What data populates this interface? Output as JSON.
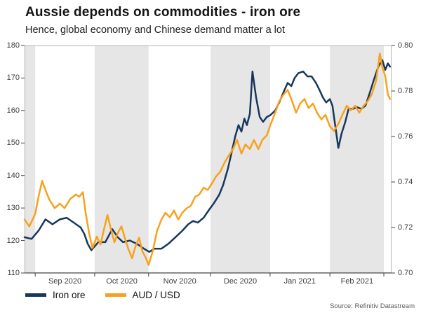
{
  "source": "Source: Refinitiv Datastream",
  "colors": {
    "navy": "#17375e",
    "orange": "#f8a11c",
    "band": "#e6e6e6",
    "frame": "#a0a0a0",
    "axis": "#3d3d3d",
    "tick": "#404040"
  },
  "legend": [
    {
      "label": "Iron ore",
      "color": "#17375e"
    },
    {
      "label": "AUD / USD",
      "color": "#f8a11c"
    }
  ],
  "chart_data": {
    "type": "line",
    "title": "Aussie depends on commodities - iron ore",
    "subtitle": "Hence, global economy and Chinese demand matter a lot",
    "legend_position": "bottom-left",
    "grid": "off",
    "left_axis": {
      "range": [
        110,
        180
      ],
      "ticks": [
        180,
        170,
        160,
        150,
        140,
        130,
        120,
        110
      ]
    },
    "right_axis": {
      "range": [
        0.7,
        0.8
      ],
      "ticks": [
        "0.80",
        "0.78",
        "0.76",
        "0.74",
        "0.72",
        "0.70"
      ]
    },
    "x_labels": [
      {
        "label": "Sep 2020",
        "pos": 0.11
      },
      {
        "label": "Oct 2020",
        "pos": 0.265
      },
      {
        "label": "Nov 2020",
        "pos": 0.423
      },
      {
        "label": "Dec 2020",
        "pos": 0.588
      },
      {
        "label": "Jan 2021",
        "pos": 0.75
      },
      {
        "label": "Feb 2021",
        "pos": 0.906
      }
    ],
    "x_ticks": [
      0.029,
      0.191,
      0.338,
      0.507,
      0.669,
      0.832,
      0.979
    ],
    "bands": [
      {
        "start": 0.0,
        "end": 0.029,
        "shaded": true
      },
      {
        "start": 0.029,
        "end": 0.191,
        "shaded": false
      },
      {
        "start": 0.191,
        "end": 0.338,
        "shaded": true
      },
      {
        "start": 0.338,
        "end": 0.507,
        "shaded": false
      },
      {
        "start": 0.507,
        "end": 0.669,
        "shaded": true
      },
      {
        "start": 0.669,
        "end": 0.832,
        "shaded": false
      },
      {
        "start": 0.832,
        "end": 0.979,
        "shaded": true
      },
      {
        "start": 0.979,
        "end": 1.0,
        "shaded": false
      }
    ],
    "series": [
      {
        "name": "Iron ore",
        "axis": "left",
        "color": "#17375e",
        "x": [
          0,
          0.019,
          0.038,
          0.057,
          0.076,
          0.096,
          0.115,
          0.134,
          0.153,
          0.163,
          0.172,
          0.182,
          0.201,
          0.22,
          0.239,
          0.254,
          0.268,
          0.287,
          0.306,
          0.325,
          0.34,
          0.354,
          0.373,
          0.392,
          0.411,
          0.43,
          0.446,
          0.459,
          0.472,
          0.488,
          0.503,
          0.516,
          0.53,
          0.541,
          0.554,
          0.564,
          0.574,
          0.583,
          0.591,
          0.599,
          0.606,
          0.614,
          0.621,
          0.631,
          0.641,
          0.65,
          0.66,
          0.669,
          0.683,
          0.694,
          0.707,
          0.717,
          0.727,
          0.736,
          0.746,
          0.759,
          0.771,
          0.782,
          0.794,
          0.805,
          0.813,
          0.822,
          0.832,
          0.839,
          0.847,
          0.855,
          0.864,
          0.874,
          0.883,
          0.895,
          0.906,
          0.918,
          0.929,
          0.941,
          0.952,
          0.964,
          0.975,
          0.983,
          0.99,
          0.996
        ],
        "values": [
          121,
          120.5,
          123,
          126.5,
          125,
          126.5,
          127,
          125.5,
          124,
          122,
          119,
          117,
          119.5,
          119.5,
          123.5,
          121,
          119.5,
          120,
          119,
          117.5,
          116.5,
          117.5,
          117.5,
          119,
          121,
          123,
          125,
          126,
          125.5,
          127,
          129.5,
          131.5,
          134,
          137,
          142,
          147,
          152,
          155.5,
          153.5,
          157.5,
          155.5,
          159,
          172,
          164,
          158,
          156.5,
          158,
          158.5,
          160,
          162.5,
          166,
          168.5,
          167.5,
          170,
          171.5,
          172,
          170.5,
          170.5,
          168.5,
          166,
          164,
          162.5,
          163.5,
          161.5,
          155,
          148.5,
          153,
          156.5,
          160.5,
          160.5,
          161,
          160.5,
          161.5,
          165.5,
          169.5,
          173.5,
          175.5,
          172.5,
          174.5,
          173.5
        ]
      },
      {
        "name": "AUD / USD",
        "axis": "right",
        "color": "#f8a11c",
        "x": [
          0,
          0.013,
          0.029,
          0.038,
          0.048,
          0.057,
          0.067,
          0.082,
          0.096,
          0.109,
          0.124,
          0.14,
          0.149,
          0.159,
          0.166,
          0.176,
          0.185,
          0.197,
          0.207,
          0.216,
          0.226,
          0.235,
          0.245,
          0.254,
          0.264,
          0.273,
          0.283,
          0.293,
          0.302,
          0.312,
          0.321,
          0.331,
          0.338,
          0.35,
          0.361,
          0.373,
          0.384,
          0.396,
          0.407,
          0.419,
          0.43,
          0.442,
          0.453,
          0.465,
          0.476,
          0.488,
          0.499,
          0.511,
          0.522,
          0.533,
          0.545,
          0.556,
          0.568,
          0.579,
          0.591,
          0.602,
          0.614,
          0.625,
          0.637,
          0.648,
          0.66,
          0.671,
          0.683,
          0.694,
          0.706,
          0.717,
          0.729,
          0.74,
          0.751,
          0.763,
          0.774,
          0.786,
          0.797,
          0.809,
          0.82,
          0.832,
          0.843,
          0.855,
          0.866,
          0.878,
          0.889,
          0.901,
          0.912,
          0.924,
          0.935,
          0.946,
          0.958,
          0.968,
          0.975,
          0.983,
          0.99,
          0.996
        ],
        "values": [
          0.7235,
          0.7205,
          0.726,
          0.7335,
          0.7405,
          0.7365,
          0.7325,
          0.7285,
          0.7305,
          0.7285,
          0.7325,
          0.7345,
          0.7335,
          0.7355,
          0.727,
          0.7175,
          0.711,
          0.716,
          0.7125,
          0.719,
          0.7255,
          0.7195,
          0.7135,
          0.7175,
          0.7205,
          0.7155,
          0.7105,
          0.7065,
          0.7115,
          0.7155,
          0.7095,
          0.7065,
          0.7035,
          0.71,
          0.7185,
          0.7235,
          0.7265,
          0.7245,
          0.7275,
          0.7235,
          0.7265,
          0.7285,
          0.7295,
          0.7335,
          0.7345,
          0.7375,
          0.7365,
          0.7395,
          0.7425,
          0.7445,
          0.7485,
          0.7515,
          0.7545,
          0.7585,
          0.7525,
          0.7565,
          0.7545,
          0.7585,
          0.7545,
          0.7585,
          0.7605,
          0.7655,
          0.7705,
          0.7755,
          0.7785,
          0.7805,
          0.7755,
          0.7705,
          0.7745,
          0.7765,
          0.7725,
          0.7745,
          0.7705,
          0.7675,
          0.7695,
          0.7645,
          0.7625,
          0.7655,
          0.7695,
          0.7735,
          0.7715,
          0.7735,
          0.7705,
          0.7735,
          0.7755,
          0.7785,
          0.7845,
          0.7965,
          0.7905,
          0.7865,
          0.7785,
          0.7765
        ]
      }
    ]
  }
}
